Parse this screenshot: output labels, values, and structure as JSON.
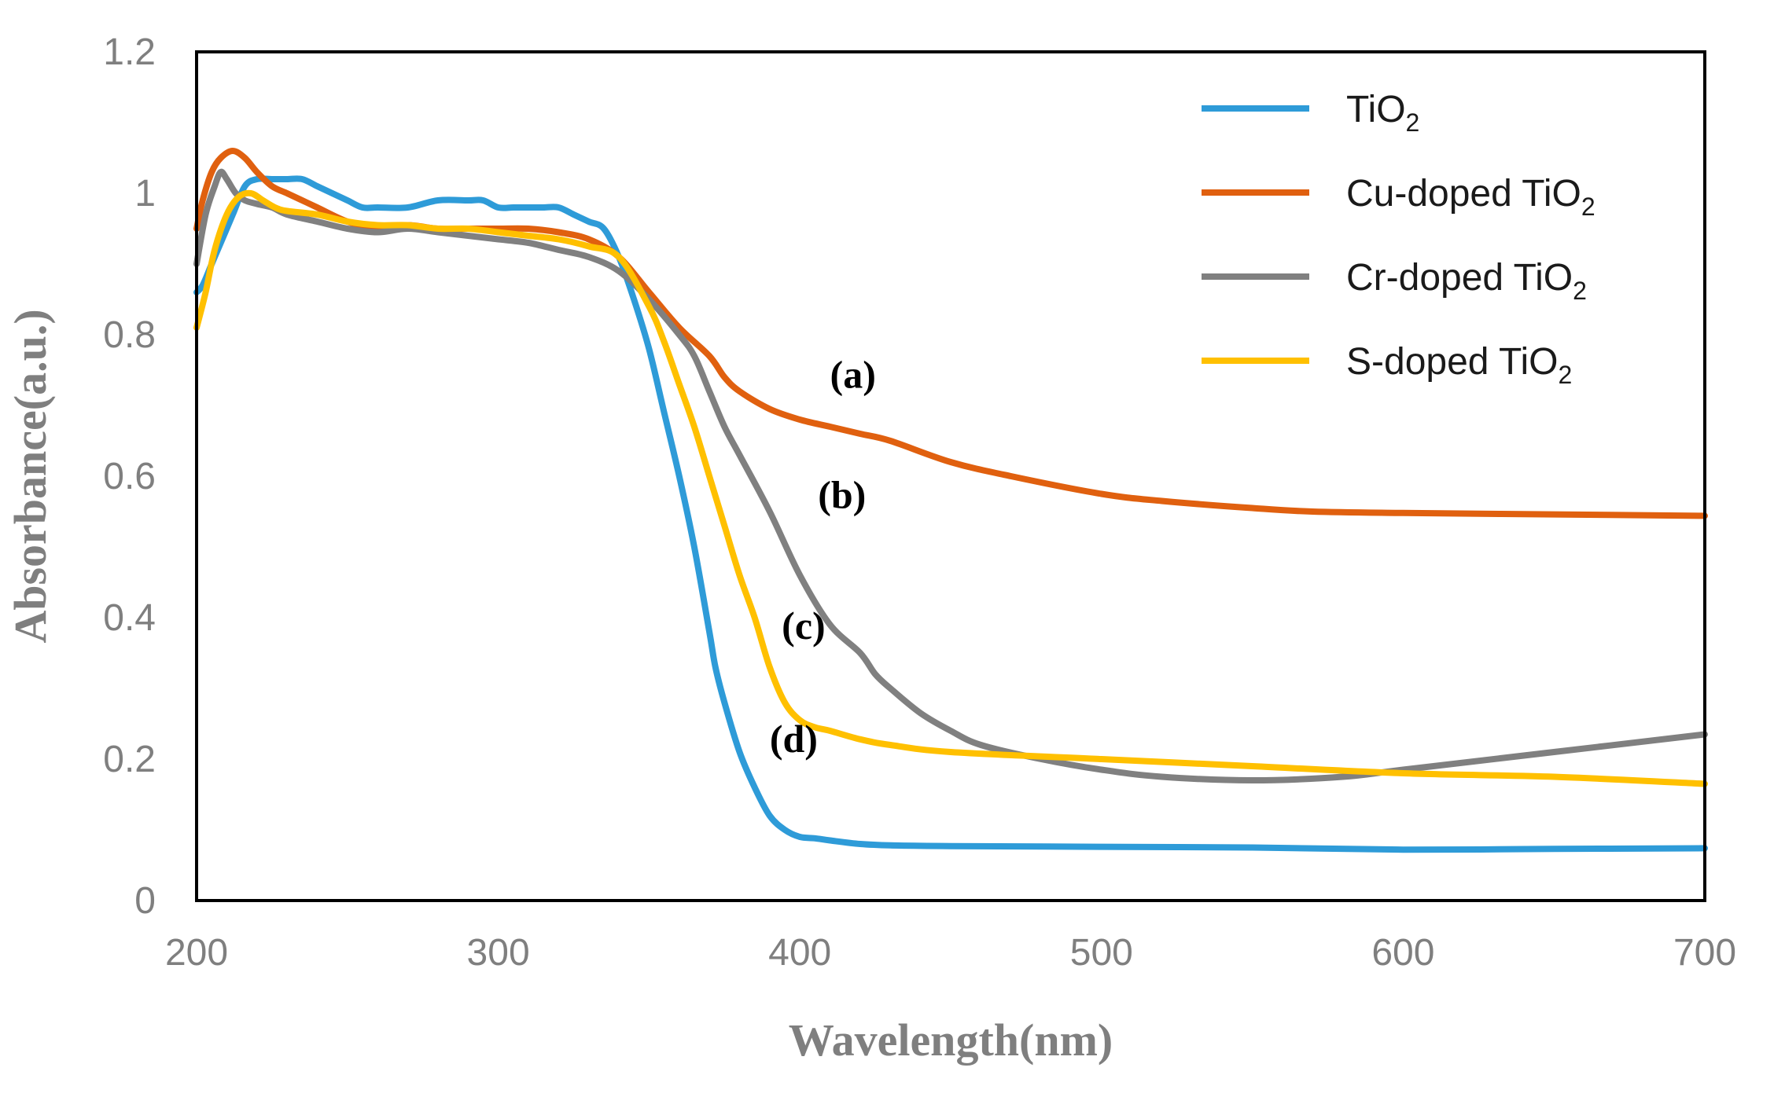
{
  "chart_data": {
    "type": "line",
    "title": "",
    "xlabel": "Wavelength(nm)",
    "ylabel": "Absorbance(a.u.)",
    "xlim": [
      200,
      700
    ],
    "ylim": [
      0,
      1.2
    ],
    "xticks": [
      200,
      300,
      400,
      500,
      600,
      700
    ],
    "yticks": [
      0,
      0.2,
      0.4,
      0.6,
      0.8,
      1,
      1.2
    ],
    "xtick_labels": [
      "200",
      "300",
      "400",
      "500",
      "600",
      "700"
    ],
    "ytick_labels": [
      "0",
      "0.2",
      "0.4",
      "0.6",
      "0.8",
      "1",
      "1.2"
    ],
    "grid": false,
    "legend_position": "top-right",
    "series": [
      {
        "name": "TiO2",
        "legend_main": "TiO",
        "legend_sub": "2",
        "color": "#2e9bd8",
        "x": [
          200,
          202,
          205,
          208,
          212,
          216,
          220,
          225,
          230,
          235,
          240,
          245,
          250,
          255,
          260,
          270,
          280,
          290,
          295,
          300,
          305,
          310,
          315,
          320,
          325,
          330,
          335,
          340,
          345,
          350,
          355,
          360,
          365,
          370,
          372,
          375,
          380,
          385,
          390,
          395,
          400,
          405,
          410,
          420,
          430,
          450,
          500,
          550,
          600,
          650,
          700
        ],
        "y": [
          0.86,
          0.87,
          0.9,
          0.93,
          0.97,
          1.01,
          1.02,
          1.02,
          1.02,
          1.02,
          1.01,
          1.0,
          0.99,
          0.98,
          0.98,
          0.98,
          0.99,
          0.99,
          0.99,
          0.98,
          0.98,
          0.98,
          0.98,
          0.98,
          0.97,
          0.96,
          0.95,
          0.91,
          0.85,
          0.78,
          0.69,
          0.6,
          0.5,
          0.38,
          0.33,
          0.28,
          0.21,
          0.16,
          0.12,
          0.1,
          0.09,
          0.088,
          0.085,
          0.08,
          0.078,
          0.077,
          0.076,
          0.075,
          0.072,
          0.073,
          0.074
        ]
      },
      {
        "name": "Cu-doped TiO2",
        "legend_main": "Cu-doped TiO",
        "legend_sub": "2",
        "color": "#e0600f",
        "x": [
          200,
          202,
          205,
          208,
          212,
          216,
          220,
          225,
          230,
          235,
          240,
          250,
          260,
          270,
          280,
          290,
          300,
          310,
          320,
          330,
          340,
          350,
          360,
          370,
          375,
          380,
          390,
          400,
          410,
          420,
          430,
          450,
          470,
          500,
          520,
          550,
          570,
          600,
          650,
          700
        ],
        "y": [
          0.95,
          0.99,
          1.03,
          1.05,
          1.06,
          1.05,
          1.03,
          1.01,
          1.0,
          0.99,
          0.98,
          0.96,
          0.95,
          0.955,
          0.95,
          0.95,
          0.95,
          0.95,
          0.945,
          0.935,
          0.91,
          0.86,
          0.81,
          0.77,
          0.74,
          0.72,
          0.695,
          0.68,
          0.67,
          0.66,
          0.65,
          0.62,
          0.6,
          0.575,
          0.565,
          0.555,
          0.55,
          0.548,
          0.546,
          0.544
        ]
      },
      {
        "name": "Cr-doped TiO2",
        "legend_main": "Cr-doped TiO",
        "legend_sub": "2",
        "color": "#808080",
        "x": [
          200,
          203,
          206,
          208,
          210,
          213,
          216,
          220,
          225,
          230,
          240,
          250,
          260,
          270,
          280,
          290,
          300,
          310,
          320,
          330,
          340,
          350,
          360,
          365,
          370,
          375,
          380,
          390,
          400,
          410,
          420,
          425,
          430,
          440,
          450,
          460,
          480,
          500,
          520,
          550,
          580,
          600,
          650,
          700
        ],
        "y": [
          0.9,
          0.97,
          1.01,
          1.03,
          1.02,
          1.0,
          0.99,
          0.985,
          0.98,
          0.97,
          0.96,
          0.95,
          0.945,
          0.95,
          0.945,
          0.94,
          0.935,
          0.93,
          0.92,
          0.91,
          0.89,
          0.85,
          0.8,
          0.77,
          0.72,
          0.67,
          0.63,
          0.55,
          0.46,
          0.39,
          0.35,
          0.32,
          0.3,
          0.265,
          0.24,
          0.22,
          0.2,
          0.185,
          0.175,
          0.17,
          0.175,
          0.185,
          0.21,
          0.235
        ]
      },
      {
        "name": "S-doped TiO2",
        "legend_main": "S-doped TiO",
        "legend_sub": "2",
        "color": "#ffc000",
        "x": [
          200,
          203,
          206,
          210,
          214,
          218,
          222,
          226,
          230,
          240,
          250,
          260,
          270,
          280,
          290,
          300,
          310,
          320,
          330,
          340,
          350,
          355,
          360,
          365,
          370,
          375,
          380,
          385,
          390,
          395,
          400,
          405,
          410,
          420,
          430,
          450,
          500,
          550,
          600,
          650,
          700
        ],
        "y": [
          0.81,
          0.86,
          0.92,
          0.97,
          0.995,
          1.0,
          0.99,
          0.98,
          0.975,
          0.97,
          0.96,
          0.955,
          0.955,
          0.95,
          0.95,
          0.945,
          0.94,
          0.935,
          0.925,
          0.91,
          0.84,
          0.79,
          0.73,
          0.67,
          0.6,
          0.53,
          0.46,
          0.4,
          0.33,
          0.28,
          0.255,
          0.245,
          0.24,
          0.228,
          0.22,
          0.21,
          0.2,
          0.19,
          0.18,
          0.175,
          0.165
        ]
      }
    ],
    "annotations": [
      {
        "text": "(a)",
        "x": 410,
        "y": 0.725
      },
      {
        "text": "(b)",
        "x": 406,
        "y": 0.555
      },
      {
        "text": "(c)",
        "x": 394,
        "y": 0.37
      },
      {
        "text": "(d)",
        "x": 390,
        "y": 0.21
      }
    ]
  }
}
